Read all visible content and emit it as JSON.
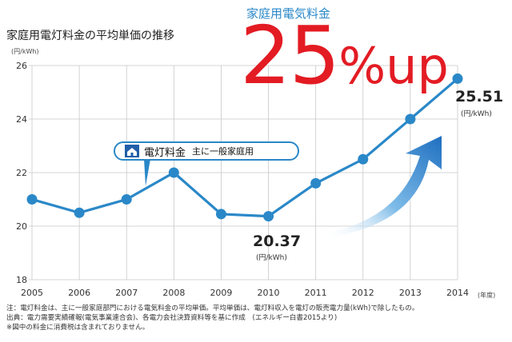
{
  "kicker": "家庭用電気料金",
  "title": "家庭用電灯料金の平均単価の推移",
  "headline": {
    "number": "25",
    "rest": "%up"
  },
  "legend": {
    "label": "電灯料金",
    "sub": "主に一般家庭用"
  },
  "x_unit": "(年度)",
  "callouts": {
    "last": {
      "value": "25.51",
      "unit": "(円/kWh)"
    },
    "min": {
      "value": "20.37",
      "unit": "(円/kWh)"
    }
  },
  "notes": [
    "注：電灯料金は、主に一般家庭部門における電気料金の平均単価。平均単価は、電灯料収入を電灯の販売電力量(kWh)で除したもの。",
    "出典：電力需要実績確報(電気事業連合会)、各電力会社決算資料等を基に作成　(エネルギー白書2015より)",
    "※図中の料金に消費税は含まれておりません。"
  ],
  "colors": {
    "line": "#2a88c8",
    "accent": "#e31b23",
    "grid": "#c8c8c8"
  },
  "chart_data": {
    "type": "line",
    "title": "家庭用電灯料金の平均単価の推移",
    "ylabel": "(円/kWh)",
    "xlabel": "(年度)",
    "x": [
      "2005",
      "2006",
      "2007",
      "2008",
      "2009",
      "2010",
      "2011",
      "2012",
      "2013",
      "2014"
    ],
    "series": [
      {
        "name": "電灯料金",
        "values": [
          21.0,
          20.5,
          21.0,
          22.0,
          20.45,
          20.37,
          21.6,
          22.5,
          24.0,
          25.51
        ]
      }
    ],
    "yticks": [
      18,
      20,
      22,
      24,
      26
    ],
    "ylim": [
      18,
      26
    ],
    "grid": true
  }
}
